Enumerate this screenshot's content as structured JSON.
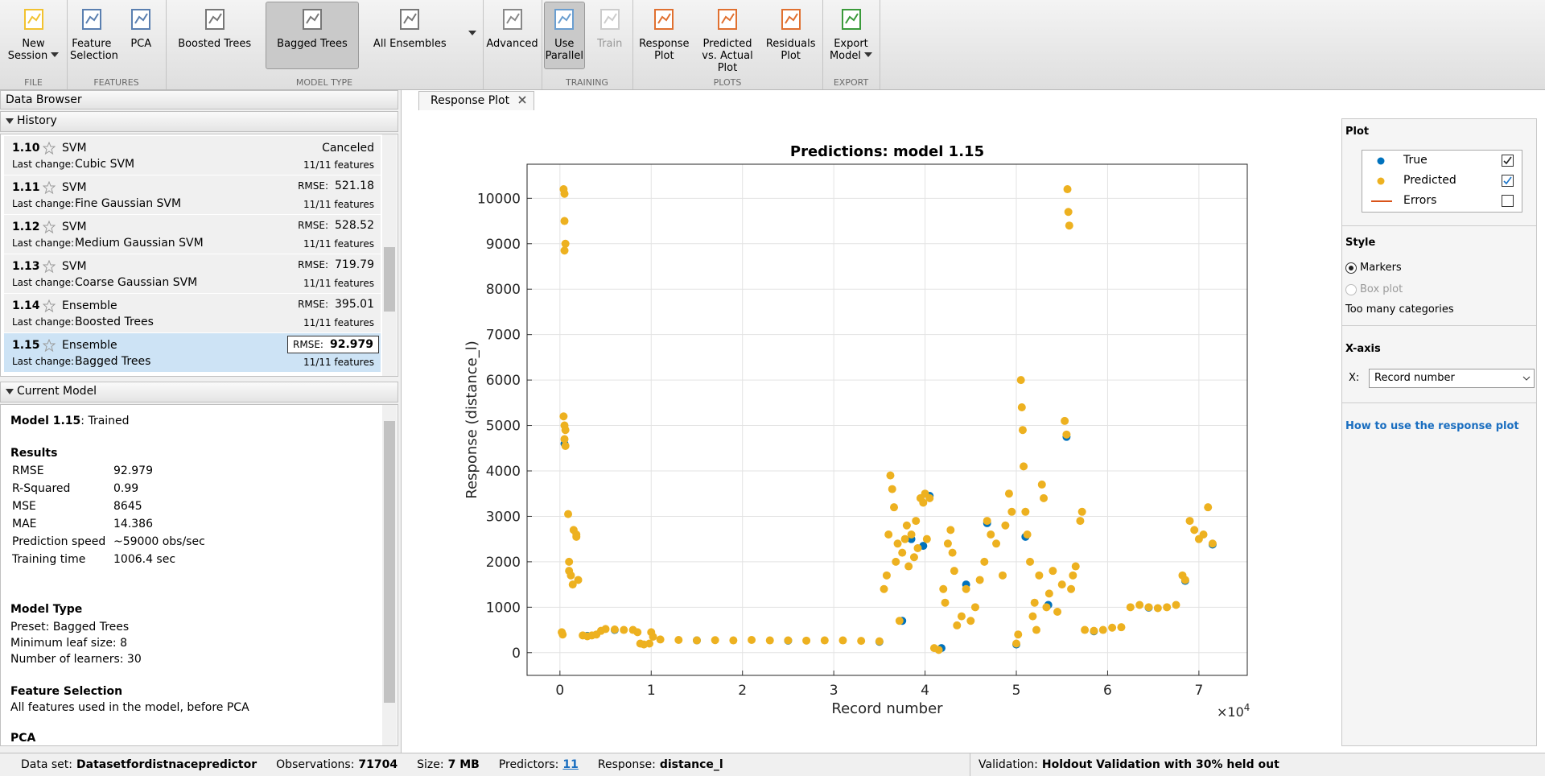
{
  "toolbar": {
    "groups": [
      {
        "label": "FILE",
        "buttons": [
          {
            "label": "New Session",
            "menu": true
          }
        ]
      },
      {
        "label": "FEATURES",
        "buttons": [
          {
            "label": "Feature Selection"
          },
          {
            "label": "PCA"
          }
        ]
      },
      {
        "label": "MODEL TYPE",
        "buttons": [
          {
            "label": "Boosted Trees"
          },
          {
            "label": "Bagged Trees",
            "selected": true
          },
          {
            "label": "All Ensembles"
          }
        ]
      },
      {
        "buttons": [
          {
            "label": "Advanced"
          }
        ]
      },
      {
        "label": "TRAINING",
        "buttons": [
          {
            "label": "Use Parallel",
            "selected": true
          },
          {
            "label": "Train",
            "disabled": true
          }
        ]
      },
      {
        "label": "PLOTS",
        "buttons": [
          {
            "label": "Response Plot"
          },
          {
            "label": "Predicted vs. Actual Plot"
          },
          {
            "label": "Residuals Plot"
          }
        ]
      },
      {
        "label": "EXPORT",
        "buttons": [
          {
            "label": "Export Model",
            "menu": true
          }
        ]
      }
    ]
  },
  "data_browser": {
    "title": "Data Browser",
    "history_title": "History",
    "last_change_label": "Last change:",
    "rmse_label": "RMSE:",
    "history": [
      {
        "id": "1.10",
        "type": "SVM",
        "last_change": "Cubic SVM",
        "status": "Canceled",
        "features": "11/11 features"
      },
      {
        "id": "1.11",
        "type": "SVM",
        "last_change": "Fine Gaussian SVM",
        "rmse": 521.18,
        "features": "11/11 features"
      },
      {
        "id": "1.12",
        "type": "SVM",
        "last_change": "Medium Gaussian SVM",
        "rmse": 528.52,
        "features": "11/11 features"
      },
      {
        "id": "1.13",
        "type": "SVM",
        "last_change": "Coarse Gaussian SVM",
        "rmse": 719.79,
        "features": "11/11 features"
      },
      {
        "id": "1.14",
        "type": "Ensemble",
        "last_change": "Boosted Trees",
        "rmse": 395.01,
        "features": "11/11 features"
      },
      {
        "id": "1.15",
        "type": "Ensemble",
        "last_change": "Bagged Trees",
        "rmse": 92.979,
        "features": "11/11 features",
        "selected": true
      }
    ]
  },
  "current_model": {
    "title": "Current Model",
    "model": "Model 1.15",
    "state": ": Trained",
    "results_title": "Results",
    "results": [
      [
        "RMSE",
        "92.979"
      ],
      [
        "R-Squared",
        "0.99"
      ],
      [
        "MSE",
        "8645"
      ],
      [
        "MAE",
        "14.386"
      ],
      [
        "Prediction speed",
        "~59000 obs/sec"
      ],
      [
        "Training time",
        "1006.4 sec"
      ]
    ],
    "model_type_title": "Model Type",
    "model_type": [
      "Preset: Bagged Trees",
      "Minimum leaf size: 8",
      "Number of learners: 30"
    ],
    "feature_selection_title": "Feature Selection",
    "feature_selection": "All features used in the model, before PCA",
    "pca_title": "PCA"
  },
  "tab": "Response Plot",
  "chart_data": {
    "type": "scatter",
    "title": "Predictions: model 1.15",
    "x_label": "Record number",
    "y_label": "Response (distance_l)",
    "x_exponent": {
      "base": "×10",
      "power": "4"
    },
    "xlim": [
      -0.36,
      7.53
    ],
    "ylim": [
      -500,
      10750
    ],
    "xticks": [
      0,
      1,
      2,
      3,
      4,
      5,
      6,
      7
    ],
    "yticks": [
      0,
      1000,
      2000,
      3000,
      4000,
      5000,
      6000,
      7000,
      8000,
      9000,
      10000
    ],
    "grid": true,
    "series": [
      {
        "name": "True",
        "color": "#0072bd",
        "x": [
          0.05,
          0.3,
          0.6,
          1.5,
          2.5,
          3.5,
          3.75,
          3.85,
          3.98,
          4.05,
          4.18,
          4.45,
          4.68,
          5.0,
          5.1,
          5.35,
          5.55,
          5.85,
          6.45,
          6.85,
          7.15
        ],
        "values": [
          4600,
          370,
          500,
          270,
          265,
          240,
          700,
          2500,
          2350,
          3450,
          100,
          1500,
          2850,
          180,
          2550,
          1050,
          4750,
          470,
          990,
          1580,
          2380
        ]
      },
      {
        "name": "Predicted",
        "color": "#edb120",
        "x": [
          0.04,
          0.05,
          0.05,
          0.06,
          0.05,
          0.04,
          0.05,
          0.06,
          0.05,
          0.06,
          0.02,
          0.03,
          0.09,
          0.1,
          0.1,
          0.12,
          0.14,
          0.18,
          0.15,
          0.18,
          0.2,
          0.25,
          0.3,
          0.35,
          0.4,
          0.45,
          0.5,
          0.6,
          0.7,
          0.8,
          0.85,
          0.88,
          0.92,
          0.98,
          1.0,
          1.02,
          1.1,
          1.3,
          1.5,
          1.7,
          1.9,
          2.1,
          2.3,
          2.5,
          2.7,
          2.9,
          3.1,
          3.3,
          3.5,
          3.55,
          3.58,
          3.6,
          3.62,
          3.64,
          3.66,
          3.68,
          3.7,
          3.72,
          3.75,
          3.78,
          3.8,
          3.82,
          3.85,
          3.88,
          3.9,
          3.92,
          3.95,
          3.98,
          4.0,
          4.02,
          4.05,
          4.1,
          4.15,
          4.2,
          4.22,
          4.25,
          4.28,
          4.3,
          4.32,
          4.35,
          4.4,
          4.45,
          4.5,
          4.55,
          4.6,
          4.65,
          4.68,
          4.72,
          4.78,
          4.85,
          4.88,
          4.92,
          4.95,
          5.0,
          5.02,
          5.05,
          5.06,
          5.07,
          5.08,
          5.1,
          5.12,
          5.15,
          5.18,
          5.2,
          5.22,
          5.25,
          5.28,
          5.3,
          5.33,
          5.36,
          5.4,
          5.45,
          5.5,
          5.53,
          5.55,
          5.56,
          5.57,
          5.58,
          5.6,
          5.62,
          5.65,
          5.7,
          5.72,
          5.75,
          5.85,
          5.95,
          6.05,
          6.15,
          6.25,
          6.35,
          6.45,
          6.55,
          6.65,
          6.75,
          6.82,
          6.85,
          6.9,
          6.95,
          7.0,
          7.05,
          7.1,
          7.15
        ],
        "values": [
          10200,
          10100,
          9500,
          9000,
          8850,
          5200,
          5000,
          4900,
          4700,
          4550,
          450,
          400,
          3050,
          2000,
          1800,
          1700,
          1500,
          2600,
          2700,
          2550,
          1600,
          380,
          360,
          380,
          400,
          480,
          520,
          510,
          500,
          500,
          450,
          200,
          180,
          200,
          450,
          350,
          290,
          280,
          270,
          275,
          270,
          280,
          270,
          270,
          265,
          270,
          270,
          260,
          250,
          1400,
          1700,
          2600,
          3900,
          3600,
          3200,
          2000,
          2400,
          700,
          2200,
          2500,
          2800,
          1900,
          2600,
          2100,
          2900,
          2300,
          3400,
          3300,
          3500,
          2500,
          3400,
          100,
          60,
          1400,
          1100,
          2400,
          2700,
          2200,
          1800,
          600,
          800,
          1400,
          700,
          1000,
          1600,
          2000,
          2900,
          2600,
          2400,
          1700,
          2800,
          3500,
          3100,
          200,
          400,
          6000,
          5400,
          4900,
          4100,
          3100,
          2600,
          2000,
          800,
          1100,
          500,
          1700,
          3700,
          3400,
          1000,
          1300,
          1800,
          900,
          1500,
          5100,
          4800,
          10200,
          9700,
          9400,
          1400,
          1700,
          1900,
          2900,
          3100,
          500,
          480,
          500,
          550,
          560,
          1000,
          1050,
          1000,
          980,
          1000,
          1050,
          1700,
          1600,
          2900,
          2700,
          2500,
          2600,
          3200,
          2400
        ]
      }
    ]
  },
  "plot_panel": {
    "title": "Plot",
    "legend": [
      {
        "name": "True",
        "checked": true
      },
      {
        "name": "Predicted",
        "checked": true
      },
      {
        "name": "Errors",
        "checked": false,
        "color": "#d95319"
      }
    ],
    "style_title": "Style",
    "styles": [
      {
        "label": "Markers",
        "selected": true
      },
      {
        "label": "Box plot",
        "selected": false,
        "disabled": true
      }
    ],
    "style_note": "Too many categories",
    "xaxis_title": "X-axis",
    "x_label": "X:",
    "x_value": "Record number",
    "help_link": "How to use the response plot"
  },
  "status_bar": {
    "dataset_label": "Data set:",
    "dataset": "Datasetfordistnacepredictor",
    "observations_label": "Observations:",
    "observations": 71704,
    "size_label": "Size:",
    "size": "7 MB",
    "predictors_label": "Predictors:",
    "predictors": 11,
    "response_label": "Response:",
    "response": "distance_l",
    "validation_label": "Validation:",
    "validation": "Holdout Validation with 30% held out"
  }
}
